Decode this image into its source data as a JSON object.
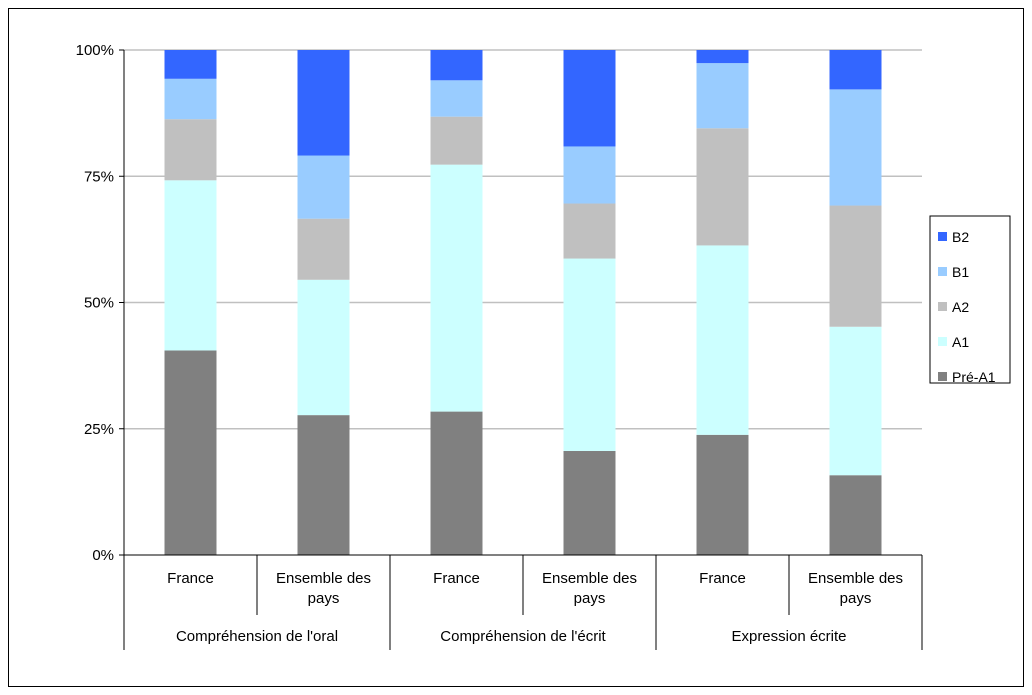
{
  "chart_data": {
    "type": "bar",
    "stacked": true,
    "normalized": true,
    "title": "",
    "xlabel": "",
    "ylabel": "",
    "ylim": [
      0,
      100
    ],
    "yticks": [
      "0%",
      "25%",
      "50%",
      "75%",
      "100%"
    ],
    "grid": true,
    "legend_position": "right",
    "categories": [
      "France",
      "Ensemble des pays",
      "France",
      "Ensemble des pays",
      "France",
      "Ensemble des pays"
    ],
    "category_lines": [
      [
        "France"
      ],
      [
        "Ensemble des",
        "pays"
      ],
      [
        "France"
      ],
      [
        "Ensemble des",
        "pays"
      ],
      [
        "France"
      ],
      [
        "Ensemble des",
        "pays"
      ]
    ],
    "groups": [
      {
        "label": "Compréhension de l'oral",
        "span": 2
      },
      {
        "label": "Compréhension de l'écrit",
        "span": 2
      },
      {
        "label": "Expression écrite",
        "span": 2
      }
    ],
    "series": [
      {
        "name": "Pré-A1",
        "color": "#808080",
        "values": [
          40.5,
          27.7,
          28.4,
          20.6,
          23.8,
          15.8
        ]
      },
      {
        "name": "A1",
        "color": "#ccffff",
        "values": [
          33.7,
          26.8,
          48.9,
          38.1,
          37.5,
          29.4
        ]
      },
      {
        "name": "A2",
        "color": "#c0c0c0",
        "values": [
          12.1,
          12.1,
          9.5,
          10.9,
          23.2,
          24.0
        ]
      },
      {
        "name": "B1",
        "color": "#99ccff",
        "values": [
          8.0,
          12.5,
          7.2,
          11.3,
          12.9,
          23.0
        ]
      },
      {
        "name": "B2",
        "color": "#3366ff",
        "values": [
          5.7,
          20.9,
          6.0,
          19.1,
          2.6,
          7.8
        ]
      }
    ],
    "legend_order": [
      "B2",
      "B1",
      "A2",
      "A1",
      "Pré-A1"
    ]
  }
}
